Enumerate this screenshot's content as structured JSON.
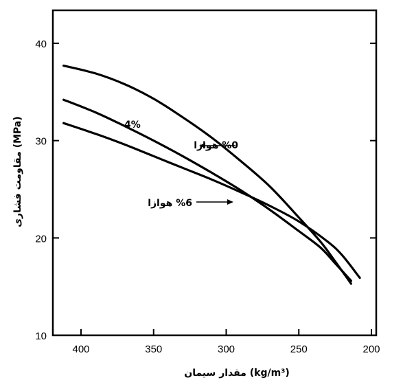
{
  "chart_data": {
    "type": "line",
    "xlabel": "مقدار سیمان (kg/m³)",
    "ylabel": "مقاومت فشاری (MPa)",
    "xlim": [
      420,
      200
    ],
    "ylim": [
      10,
      45
    ],
    "x_reversed": true,
    "xticks": [
      "400",
      "350",
      "300",
      "250",
      "200"
    ],
    "yticks": [
      "10",
      "20",
      "30",
      "40"
    ],
    "series": [
      {
        "name": "%0 هوازا",
        "x": [
          412,
          390,
          370,
          350,
          330,
          310,
          290,
          270,
          250,
          235,
          225,
          214
        ],
        "y": [
          37.7,
          36.9,
          35.8,
          34.3,
          32.4,
          30.3,
          27.9,
          25.3,
          22.1,
          19.6,
          17.6,
          15.3
        ]
      },
      {
        "name": "4%",
        "x": [
          412,
          390,
          370,
          350,
          330,
          310,
          290,
          270,
          250,
          235,
          225,
          214
        ],
        "y": [
          34.2,
          32.9,
          31.5,
          30.0,
          28.4,
          26.7,
          24.9,
          22.9,
          20.7,
          19.0,
          17.4,
          15.6
        ]
      },
      {
        "name": "%6 هوازا",
        "x": [
          412,
          390,
          370,
          350,
          330,
          310,
          290,
          270,
          250,
          230,
          220,
          208
        ],
        "y": [
          31.8,
          30.7,
          29.6,
          28.4,
          27.2,
          26.0,
          24.7,
          23.3,
          21.7,
          19.6,
          18.2,
          15.9
        ]
      }
    ],
    "annotations": [
      {
        "text": "%0 هوازا",
        "arrow_to": [
          320,
          29.5
        ]
      },
      {
        "text": "4%",
        "near": [
          345,
          32.0
        ]
      },
      {
        "text": "%6 هوازا",
        "arrow_to": [
          320,
          24.8
        ]
      }
    ],
    "grid": false
  }
}
